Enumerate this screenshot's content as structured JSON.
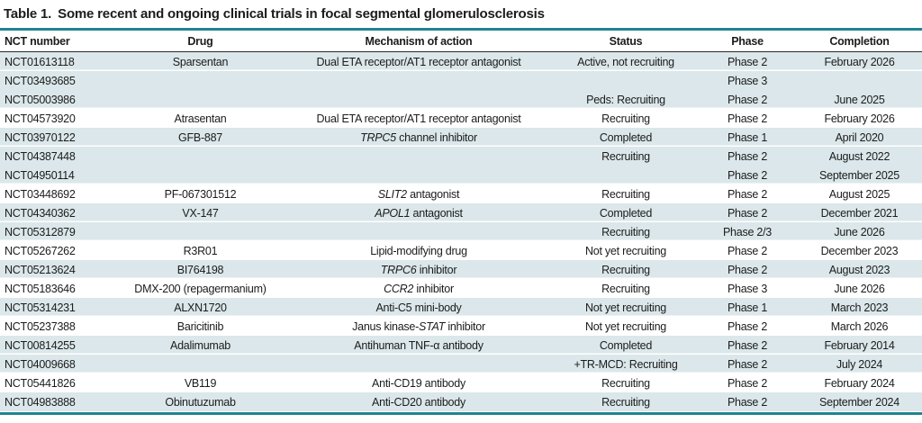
{
  "title": {
    "label": "Table 1.",
    "text": "Some recent and ongoing clinical trials in focal segmental glomerulosclerosis"
  },
  "colors": {
    "accent_teal": "#20858f",
    "row_shade": "#dbe7ea",
    "header_rule": "#2a2a2a",
    "text": "#1c1c1c"
  },
  "table": {
    "columns": [
      "NCT number",
      "Drug",
      "Mechanism of action",
      "Status",
      "Phase",
      "Completion"
    ],
    "rows": [
      {
        "nct": "NCT01613118",
        "drug": "Sparsentan",
        "mechanism": [
          {
            "t": "Dual ETA receptor/AT1 receptor antagonist"
          }
        ],
        "status": "Active, not recruiting",
        "phase": "Phase 2",
        "completion": "February 2026",
        "shaded": true,
        "sep": true
      },
      {
        "nct": "NCT03493685",
        "drug": "",
        "mechanism": [],
        "status": "",
        "phase": "Phase 3",
        "completion": "",
        "shaded": true,
        "sep": false
      },
      {
        "nct": "NCT05003986",
        "drug": "",
        "mechanism": [],
        "status": "Peds: Recruiting",
        "phase": "Phase 2",
        "completion": "June 2025",
        "shaded": true,
        "sep": true
      },
      {
        "nct": "NCT04573920",
        "drug": "Atrasentan",
        "mechanism": [
          {
            "t": "Dual ETA receptor/AT1 receptor antagonist"
          }
        ],
        "status": "Recruiting",
        "phase": "Phase 2",
        "completion": "February 2026",
        "shaded": false,
        "sep": true
      },
      {
        "nct": "NCT03970122",
        "drug": "GFB-887",
        "mechanism": [
          {
            "t": "TRPC5",
            "i": true
          },
          {
            "t": " channel inhibitor"
          }
        ],
        "status": "Completed",
        "phase": "Phase 1",
        "completion": "April 2020",
        "shaded": true,
        "sep": true
      },
      {
        "nct": "NCT04387448",
        "drug": "",
        "mechanism": [],
        "status": "Recruiting",
        "phase": "Phase 2",
        "completion": "August 2022",
        "shaded": true,
        "sep": false
      },
      {
        "nct": "NCT04950114",
        "drug": "",
        "mechanism": [],
        "status": "",
        "phase": "Phase 2",
        "completion": "September 2025",
        "shaded": true,
        "sep": true
      },
      {
        "nct": "NCT03448692",
        "drug": "PF-067301512",
        "mechanism": [
          {
            "t": "SLIT2",
            "i": true
          },
          {
            "t": " antagonist"
          }
        ],
        "status": "Recruiting",
        "phase": "Phase 2",
        "completion": "August 2025",
        "shaded": false,
        "sep": true
      },
      {
        "nct": "NCT04340362",
        "drug": "VX-147",
        "mechanism": [
          {
            "t": "APOL1",
            "i": true
          },
          {
            "t": " antagonist"
          }
        ],
        "status": "Completed",
        "phase": "Phase 2",
        "completion": "December 2021",
        "shaded": true,
        "sep": true
      },
      {
        "nct": "NCT05312879",
        "drug": "",
        "mechanism": [],
        "status": "Recruiting",
        "phase": "Phase 2/3",
        "completion": "June 2026",
        "shaded": true,
        "sep": true
      },
      {
        "nct": "NCT05267262",
        "drug": "R3R01",
        "mechanism": [
          {
            "t": "Lipid-modifying drug"
          }
        ],
        "status": "Not yet recruiting",
        "phase": "Phase 2",
        "completion": "December 2023",
        "shaded": false,
        "sep": true
      },
      {
        "nct": "NCT05213624",
        "drug": "BI764198",
        "mechanism": [
          {
            "t": "TRPC6",
            "i": true
          },
          {
            "t": " inhibitor"
          }
        ],
        "status": "Recruiting",
        "phase": "Phase 2",
        "completion": "August 2023",
        "shaded": true,
        "sep": true
      },
      {
        "nct": "NCT05183646",
        "drug": "DMX-200 (repagermanium)",
        "mechanism": [
          {
            "t": "CCR2",
            "i": true
          },
          {
            "t": " inhibitor"
          }
        ],
        "status": "Recruiting",
        "phase": "Phase 3",
        "completion": "June 2026",
        "shaded": false,
        "sep": true
      },
      {
        "nct": "NCT05314231",
        "drug": "ALXN1720",
        "mechanism": [
          {
            "t": "Anti-C5 mini-body"
          }
        ],
        "status": "Not yet recruiting",
        "phase": "Phase 1",
        "completion": "March 2023",
        "shaded": true,
        "sep": true
      },
      {
        "nct": "NCT05237388",
        "drug": "Baricitinib",
        "mechanism": [
          {
            "t": "Janus kinase-"
          },
          {
            "t": "STAT",
            "i": true
          },
          {
            "t": " inhibitor"
          }
        ],
        "status": "Not yet recruiting",
        "phase": "Phase 2",
        "completion": "March 2026",
        "shaded": false,
        "sep": true
      },
      {
        "nct": "NCT00814255",
        "drug": "Adalimumab",
        "mechanism": [
          {
            "t": "Antihuman TNF-α antibody"
          }
        ],
        "status": "Completed",
        "phase": "Phase 2",
        "completion": "February 2014",
        "shaded": true,
        "sep": true
      },
      {
        "nct": "NCT04009668",
        "drug": "",
        "mechanism": [],
        "status": "+TR-MCD: Recruiting",
        "phase": "Phase 2",
        "completion": "July 2024",
        "shaded": true,
        "sep": true
      },
      {
        "nct": "NCT05441826",
        "drug": "VB119",
        "mechanism": [
          {
            "t": "Anti-CD19 antibody"
          }
        ],
        "status": "Recruiting",
        "phase": "Phase 2",
        "completion": "February 2024",
        "shaded": false,
        "sep": true
      },
      {
        "nct": "NCT04983888",
        "drug": "Obinutuzumab",
        "mechanism": [
          {
            "t": "Anti-CD20 antibody"
          }
        ],
        "status": "Recruiting",
        "phase": "Phase 2",
        "completion": "September 2024",
        "shaded": true,
        "sep": false
      }
    ]
  }
}
